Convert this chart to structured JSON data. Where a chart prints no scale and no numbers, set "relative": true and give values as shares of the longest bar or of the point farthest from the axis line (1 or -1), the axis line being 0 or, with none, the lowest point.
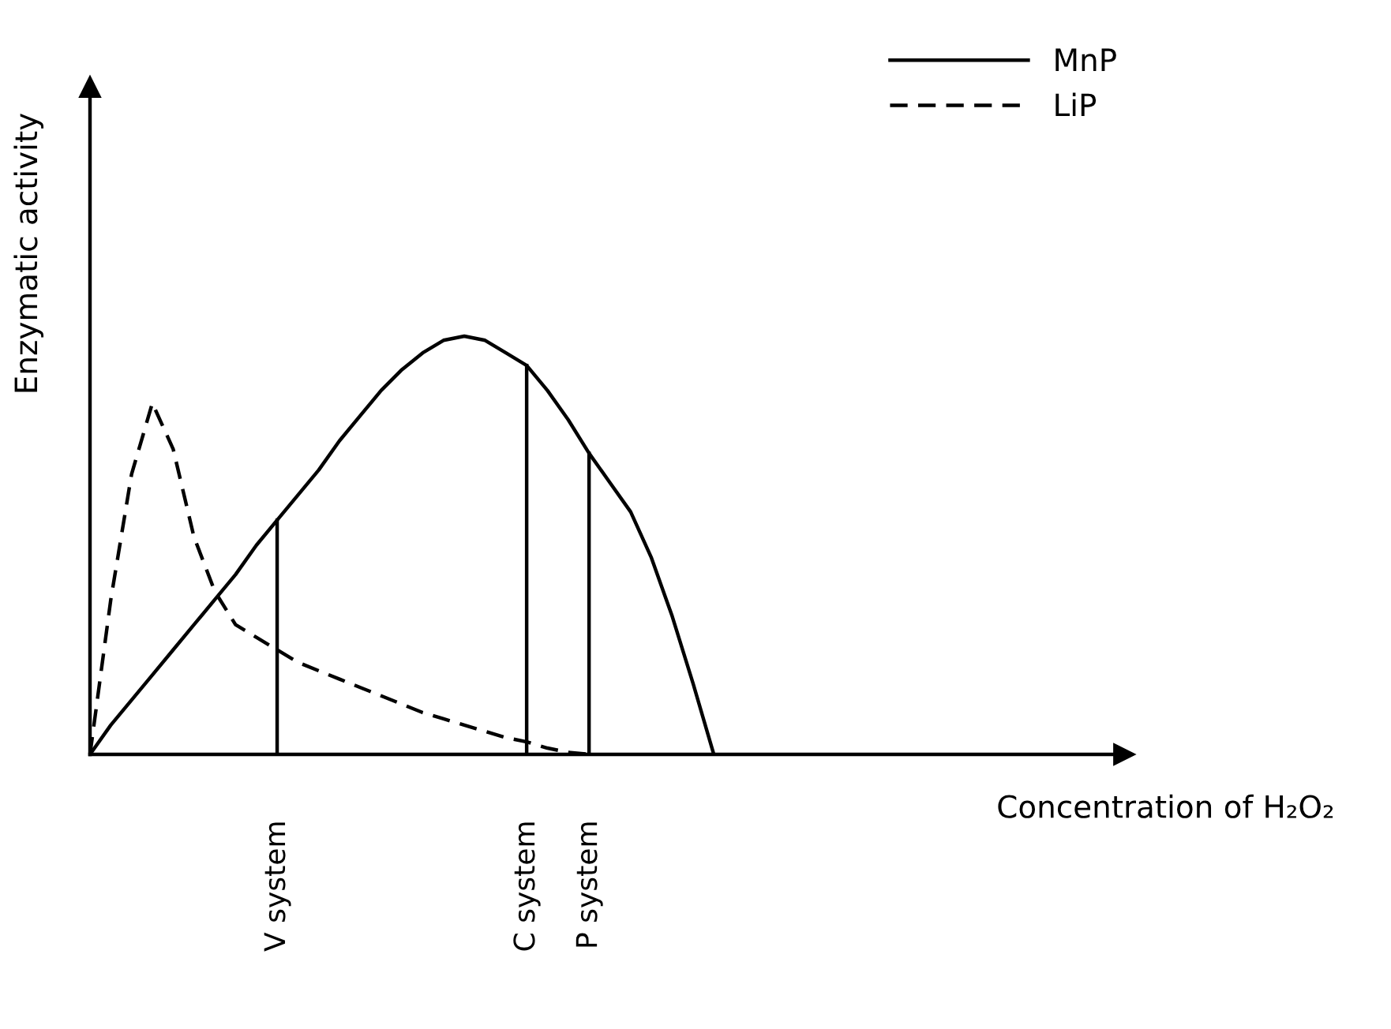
{
  "chart_data": {
    "type": "line",
    "relative": true,
    "xlabel": "Concentration of H₂O₂",
    "ylabel": "Enzymatic activity",
    "legend": "top right",
    "categories": [
      null,
      null,
      null,
      null,
      null,
      null,
      null,
      null,
      null,
      "V system",
      null,
      null,
      null,
      null,
      null,
      null,
      null,
      null,
      null,
      null,
      null,
      "C system",
      null,
      null,
      "P system",
      null,
      null,
      null,
      null,
      null,
      null,
      null,
      null,
      null,
      null,
      null,
      null,
      null,
      null,
      null,
      null,
      null,
      null,
      null,
      null,
      null,
      null,
      null,
      null,
      null
    ],
    "series": [
      {
        "name": "MnP",
        "color": "#000000",
        "line_style": "solid",
        "values": [
          0,
          0.07,
          0.13,
          0.19,
          0.25,
          0.31,
          0.37,
          0.43,
          0.5,
          0.56,
          0.62,
          0.68,
          0.75,
          0.81,
          0.87,
          0.92,
          0.96,
          0.99,
          1.0,
          0.99,
          0.96,
          0.93,
          0.87,
          0.8,
          0.72,
          0.65,
          0.58,
          0.47,
          0.33,
          0.17,
          0,
          null,
          null,
          null,
          null,
          null,
          null,
          null,
          null,
          null,
          null,
          null,
          null,
          null,
          null,
          null,
          null,
          null,
          null,
          null
        ]
      },
      {
        "name": "LiP",
        "color": "#000000",
        "line_style": "dashed",
        "values": [
          0,
          0.37,
          0.67,
          0.84,
          0.73,
          0.52,
          0.39,
          0.31,
          0.28,
          0.25,
          0.22,
          0.2,
          0.18,
          0.16,
          0.14,
          0.12,
          0.1,
          0.085,
          0.07,
          0.055,
          0.04,
          0.03,
          0.015,
          0.005,
          0,
          null,
          null,
          null,
          null,
          null,
          null,
          null,
          null,
          null,
          null,
          null,
          null,
          null,
          null,
          null,
          null,
          null,
          null,
          null,
          null,
          null,
          null,
          null,
          null,
          null
        ]
      }
    ],
    "ref_lines": [
      {
        "axis": "x",
        "value": "V system",
        "color": "#000000"
      },
      {
        "axis": "x",
        "value": "C system",
        "color": "#000000"
      },
      {
        "axis": "x",
        "value": "P system",
        "color": "#000000"
      }
    ]
  }
}
